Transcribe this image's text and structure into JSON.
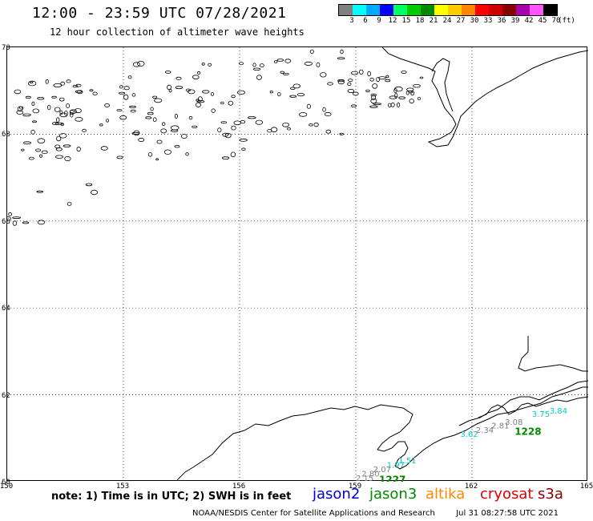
{
  "header": {
    "title": "12:00 - 23:59 UTC 07/28/2021",
    "subtitle": "12 hour collection of altimeter wave heights"
  },
  "color_scale": {
    "unit_label": "(ft)",
    "bins": [
      {
        "label": "3",
        "color": "#808080"
      },
      {
        "label": "6",
        "color": "#00ffff"
      },
      {
        "label": "9",
        "color": "#00aaff"
      },
      {
        "label": "12",
        "color": "#0000ff"
      },
      {
        "label": "15",
        "color": "#00ff60"
      },
      {
        "label": "18",
        "color": "#00cc00"
      },
      {
        "label": "21",
        "color": "#008800"
      },
      {
        "label": "24",
        "color": "#ffff00"
      },
      {
        "label": "27",
        "color": "#ffcc00"
      },
      {
        "label": "30",
        "color": "#ff8800"
      },
      {
        "label": "33",
        "color": "#ff0000"
      },
      {
        "label": "36",
        "color": "#cc0000"
      },
      {
        "label": "39",
        "color": "#880000"
      },
      {
        "label": "42",
        "color": "#aa00aa"
      },
      {
        "label": "45",
        "color": "#ff55ff"
      },
      {
        "label": "70",
        "color": "#000000"
      }
    ]
  },
  "map": {
    "lat_labels": [
      "70",
      "68",
      "66",
      "64",
      "62",
      "60"
    ],
    "lon_labels": [
      "150",
      "153",
      "156",
      "159",
      "162",
      "165"
    ],
    "observations": [
      {
        "text": "2.15",
        "lon": 159.0,
        "lat": 60.02,
        "color": "#808080"
      },
      {
        "text": "2.80",
        "lon": 159.15,
        "lat": 60.12,
        "color": "#808080"
      },
      {
        "text": "2.07",
        "lon": 159.45,
        "lat": 60.22,
        "color": "#808080"
      },
      {
        "text": "1.97",
        "lon": 159.8,
        "lat": 60.32,
        "color": "#00cccc"
      },
      {
        "text": "1.51",
        "lon": 160.1,
        "lat": 60.42,
        "color": "#00cccc"
      },
      {
        "text": "3.62",
        "lon": 161.7,
        "lat": 61.03,
        "color": "#00cccc"
      },
      {
        "text": "2.34",
        "lon": 162.1,
        "lat": 61.13,
        "color": "#808080"
      },
      {
        "text": "2.81",
        "lon": 162.5,
        "lat": 61.23,
        "color": "#808080"
      },
      {
        "text": "3.08",
        "lon": 162.85,
        "lat": 61.31,
        "color": "#808080"
      },
      {
        "text": "3.75",
        "lon": 163.55,
        "lat": 61.49,
        "color": "#00cccc"
      },
      {
        "text": "3.84",
        "lon": 164.0,
        "lat": 61.57,
        "color": "#00cccc"
      }
    ],
    "pass_labels": [
      {
        "text": "1227",
        "lon": 159.6,
        "lat": 59.97,
        "color": "#008800"
      },
      {
        "text": "1228",
        "lon": 163.1,
        "lat": 61.08,
        "color": "#008800"
      }
    ]
  },
  "note": "note: 1) Time is in UTC; 2) SWH is in feet",
  "satellites": [
    {
      "name": "jason2",
      "color": "#0000cc"
    },
    {
      "name": "jason3",
      "color": "#008800"
    },
    {
      "name": "altika",
      "color": "#ff8800"
    },
    {
      "name": "cryosat",
      "color": "#dd0000"
    },
    {
      "name": "s3a",
      "color": "#880000"
    }
  ],
  "footer": {
    "credit": "NOAA/NESDIS Center for Satellite Applications and Research",
    "timestamp": "Jul 31 08:27:58 UTC 2021"
  }
}
